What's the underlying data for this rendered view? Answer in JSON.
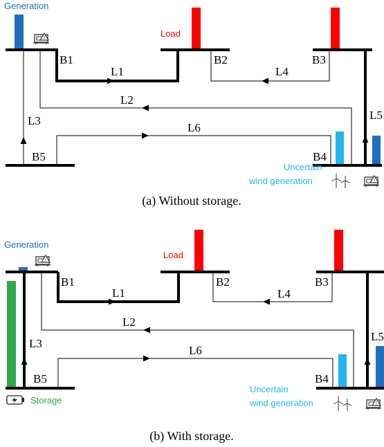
{
  "colors": {
    "generation": "#1f6fbf",
    "load": "#ff0000",
    "wind": "#22b5f0",
    "storage": "#2eaa48",
    "line": "#000000"
  },
  "icons": [
    "generator-icon",
    "wind-turbine-icon",
    "battery-icon"
  ],
  "panel_a": {
    "caption": "(a) Without storage.",
    "generation_label": "Generation",
    "load_label": "Load",
    "wind_label_1": "Uncertain",
    "wind_label_2": "wind generation",
    "buses": {
      "b1": "B1",
      "b2": "B2",
      "b3": "B3",
      "b4": "B4",
      "b5": "B5"
    },
    "lines": {
      "l1": "L1",
      "l2": "L2",
      "l3": "L3",
      "l4": "L4",
      "l5": "L5",
      "l6": "L6"
    }
  },
  "panel_b": {
    "caption": "(b) With storage.",
    "generation_label": "Generation",
    "load_label": "Load",
    "wind_label_1": "Uncertain",
    "wind_label_2": "wind generation",
    "storage_label": "Storage",
    "buses": {
      "b1": "B1",
      "b2": "B2",
      "b3": "B3",
      "b4": "B4",
      "b5": "B5"
    },
    "lines": {
      "l1": "L1",
      "l2": "L2",
      "l3": "L3",
      "l4": "L4",
      "l5": "L5",
      "l6": "L6"
    }
  }
}
